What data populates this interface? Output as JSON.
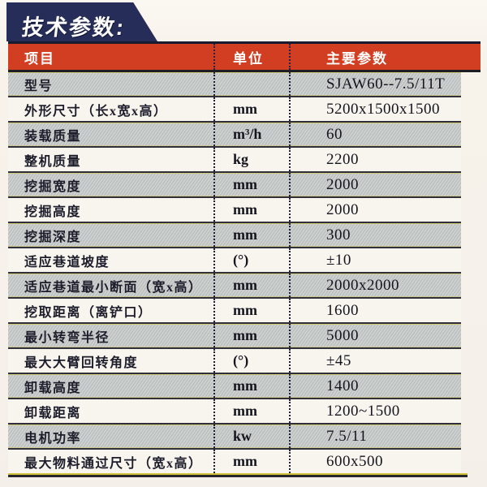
{
  "page_title": "技术参数:",
  "colors": {
    "banner_navy": "#262d58",
    "header_red": "#d23e21",
    "row_gray": "#bdc2c1",
    "row_light": "#f8f5ef",
    "separator_dark": "#30303a",
    "separator_yellow": "#d2c23c"
  },
  "table": {
    "headers": {
      "item": "项目",
      "unit": "单位",
      "value": "主要参数"
    },
    "rows": [
      {
        "item": "型号",
        "unit": "",
        "value": "SJAW60--7.5/11T"
      },
      {
        "item": "外形尺寸（长x宽x高）",
        "unit": "mm",
        "value": "5200x1500x1500"
      },
      {
        "item": "装载质量",
        "unit": "m³/h",
        "value": "60"
      },
      {
        "item": "整机质量",
        "unit": "kg",
        "value": "2200"
      },
      {
        "item": "挖掘宽度",
        "unit": "mm",
        "value": "2000"
      },
      {
        "item": "挖掘高度",
        "unit": "mm",
        "value": "2000"
      },
      {
        "item": "挖掘深度",
        "unit": "mm",
        "value": "300"
      },
      {
        "item": "适应巷道坡度",
        "unit": "(°)",
        "value": "±10"
      },
      {
        "item": "适应巷道最小断面（宽x高）",
        "unit": "mm",
        "value": "2000x2000"
      },
      {
        "item": "挖取距离（离铲口）",
        "unit": "mm",
        "value": "1600"
      },
      {
        "item": "最小转弯半径",
        "unit": "mm",
        "value": "5000"
      },
      {
        "item": "最大大臂回转角度",
        "unit": "(°)",
        "value": "±45"
      },
      {
        "item": "卸载高度",
        "unit": "mm",
        "value": "1400"
      },
      {
        "item": "卸载距离",
        "unit": "mm",
        "value": "1200~1500"
      },
      {
        "item": "电机功率",
        "unit": "kw",
        "value": "7.5/11"
      },
      {
        "item": "最大物料通过尺寸（宽x高）",
        "unit": "mm",
        "value": "600x500"
      }
    ]
  }
}
